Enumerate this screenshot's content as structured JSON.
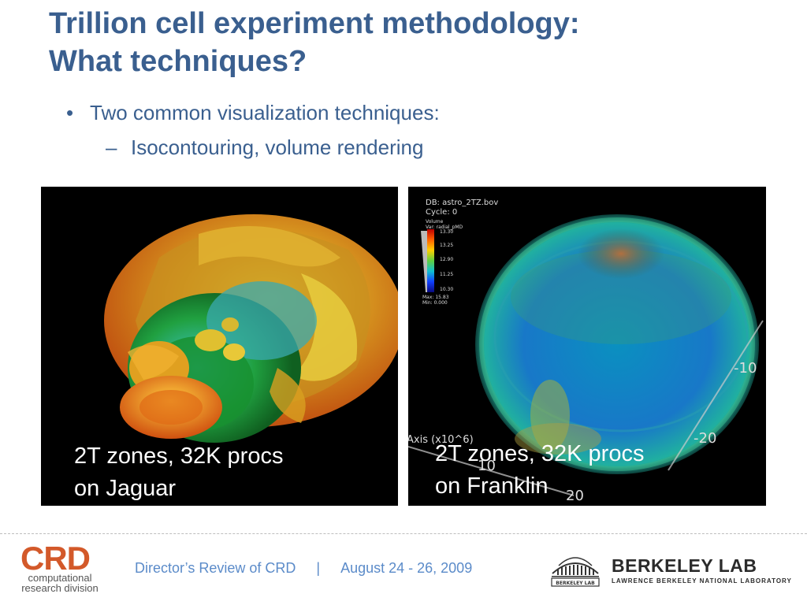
{
  "title": {
    "line1": "Trillion cell experiment methodology:",
    "line2": "What techniques?"
  },
  "bullets": {
    "level1_marker": "•",
    "level1": "Two common visualization techniques:",
    "level2_marker": "–",
    "level2": "Isocontouring, volume rendering"
  },
  "left_image": {
    "caption_line1": "2T zones, 32K procs",
    "caption_line2": "on Jaguar"
  },
  "right_image": {
    "caption_line1": "2T zones, 32K procs",
    "caption_line2": "on Franklin",
    "legend": {
      "db": "DB: astro_2TZ.bov",
      "cycle": "Cycle: 0",
      "variable": "Volume",
      "var_sub": "Var: radial_pMD",
      "ticks": [
        "13.30",
        "13.25",
        "12.90",
        "11.25",
        "10.30"
      ],
      "max": "Max: 15.83",
      "min": "Min: 0.000"
    },
    "axis": {
      "label": "Axis (x10^6)",
      "tick_neg10": "-10",
      "tick_neg20": "-20",
      "tick_10": "10",
      "tick_20": "20"
    }
  },
  "footer": {
    "event": "Director’s Review of CRD",
    "separator": "|",
    "date": "August 24 - 26, 2009"
  },
  "crd_logo": {
    "letters": "CRD",
    "line1": "computational",
    "line2": "research division"
  },
  "berkeley_logo": {
    "name": "BERKELEY LAB",
    "subtitle": "LAWRENCE BERKELEY NATIONAL LABORATORY",
    "icon_text": "BERKELEY LAB"
  },
  "colors": {
    "title": "#3a5f8f",
    "footer": "#5b8bc9",
    "crd": "#d3592a"
  }
}
